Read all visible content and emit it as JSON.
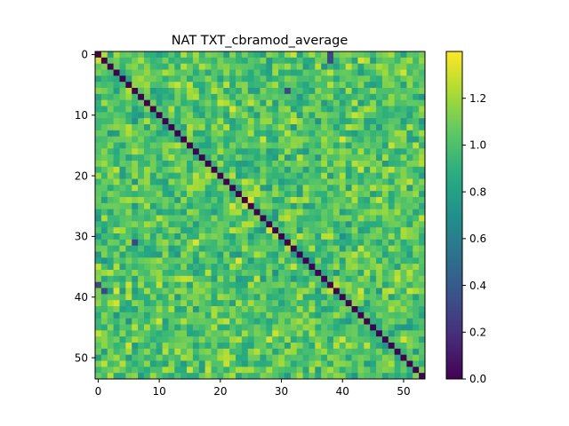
{
  "chart_data": {
    "type": "heatmap",
    "title": "NAT TXT_cbramod_average",
    "xlabel": "",
    "ylabel": "",
    "rows": 54,
    "cols": 54,
    "diagonal_value": 0.0,
    "off_diagonal_range": [
      0.7,
      1.35
    ],
    "notable_values": [
      {
        "row": 0,
        "col": 38,
        "value": 0.3
      },
      {
        "row": 1,
        "col": 38,
        "value": 0.3
      },
      {
        "row": 6,
        "col": 31,
        "value": 0.3
      },
      {
        "row": 31,
        "col": 6,
        "value": 0.3
      },
      {
        "row": 38,
        "col": 0,
        "value": 0.3
      },
      {
        "row": 39,
        "col": 1,
        "value": 0.3
      }
    ],
    "colormap": "viridis",
    "x_ticks": [
      "0",
      "10",
      "20",
      "30",
      "40",
      "50"
    ],
    "y_ticks": [
      "0",
      "10",
      "20",
      "30",
      "40",
      "50"
    ],
    "colorbar": {
      "min": 0.0,
      "max": 1.4,
      "ticks": [
        "0.0",
        "0.2",
        "0.4",
        "0.6",
        "0.8",
        "1.0",
        "1.2"
      ]
    },
    "grid": false,
    "legend": "none"
  }
}
